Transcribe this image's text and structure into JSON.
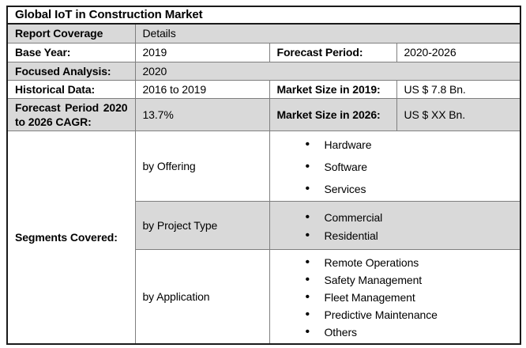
{
  "title": "Global IoT in Construction Market",
  "colors": {
    "shaded_row_bg": "#d9d9d9",
    "inner_border": "#7f7f7f",
    "outer_border": "#1a1a1a",
    "text": "#000000"
  },
  "fields": {
    "report_coverage": {
      "label": "Report Coverage",
      "value": "Details"
    },
    "base_year": {
      "label": "Base Year:",
      "value": "2019"
    },
    "forecast_period": {
      "label": "Forecast Period:",
      "value": "2020-2026"
    },
    "focused_analysis": {
      "label": "Focused Analysis:",
      "value": "2020"
    },
    "historical_data": {
      "label": "Historical Data:",
      "value": "2016 to 2019"
    },
    "market_size_2019": {
      "label": "Market Size in 2019:",
      "value": "US $ 7.8 Bn."
    },
    "forecast_cagr": {
      "label": "Forecast Period 2020 to 2026 CAGR:",
      "value": "13.7%"
    },
    "market_size_2026": {
      "label": "Market Size in 2026:",
      "value": "US $ XX Bn."
    },
    "segments_covered_label": "Segments Covered:"
  },
  "segments": {
    "groups": [
      {
        "label": "by Offering",
        "items": [
          "Hardware",
          "Software",
          "Services"
        ]
      },
      {
        "label": "by Project Type",
        "items": [
          "Commercial",
          "Residential"
        ]
      },
      {
        "label": "by Application",
        "items": [
          "Remote Operations",
          "Safety Management",
          "Fleet Management",
          "Predictive Maintenance",
          "Others"
        ]
      }
    ]
  }
}
